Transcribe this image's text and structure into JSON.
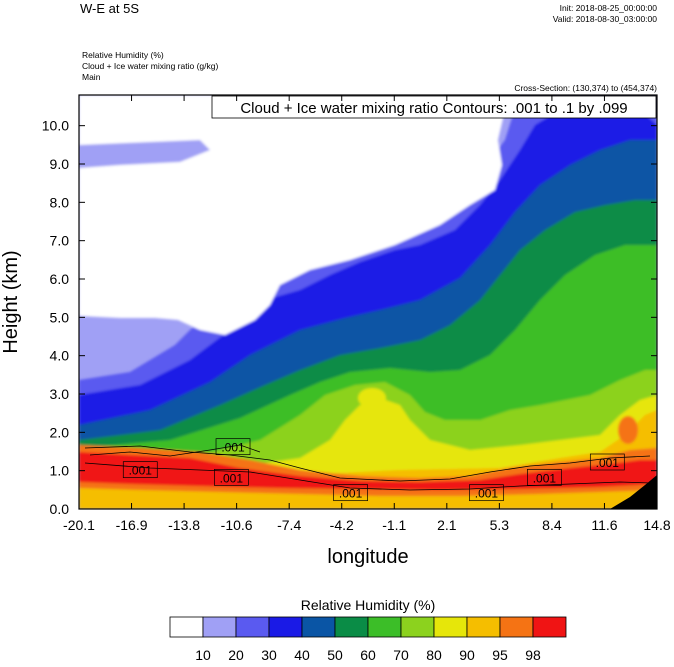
{
  "header": {
    "title": "W-E at 5S",
    "init": "Init: 2018-08-25_00:00:00",
    "valid": "Valid: 2018-08-30_03:00:00",
    "field1": "Relative Humidity   (%)",
    "field2": "Cloud + Ice water mixing ratio   (g/kg)",
    "field3": "Main",
    "cross_section": "Cross-Section: (130,374) to (454,374)"
  },
  "colors": {
    "levels": [
      "#ffffff",
      "#a0a0f5",
      "#5a5af0",
      "#1a1ae6",
      "#0a55a5",
      "#0a8c46",
      "#3cbe28",
      "#8cd21e",
      "#e6e60a",
      "#f5be00",
      "#f57314",
      "#f01414"
    ]
  },
  "chart_data": {
    "type": "heatmap",
    "title": "W-E at 5S",
    "xlabel": "longitude",
    "ylabel": "Height (km)",
    "xlim": [
      -20.1,
      14.8
    ],
    "ylim": [
      0.0,
      10.8
    ],
    "x_tick_labels": [
      "-20.1",
      "-16.9",
      "-13.8",
      "-10.6",
      "-7.4",
      "-4.2",
      "-1.1",
      "2.1",
      "5.3",
      "8.4",
      "11.6",
      "14.8"
    ],
    "y_tick_labels": [
      "0.0",
      "1.0",
      "2.0",
      "3.0",
      "4.0",
      "5.0",
      "6.0",
      "7.0",
      "8.0",
      "9.0",
      "10.0"
    ],
    "contour_title": "Cloud + Ice water mixing ratio Contours: .001 to .1 by .099",
    "contour_labels": [
      {
        "text": ".001",
        "lon": -10.8,
        "h": 1.6
      },
      {
        "text": ".001",
        "lon": -16.4,
        "h": 1.0
      },
      {
        "text": ".001",
        "lon": -10.9,
        "h": 0.8
      },
      {
        "text": ".001",
        "lon": -3.7,
        "h": 0.4
      },
      {
        "text": ".001",
        "lon": 4.5,
        "h": 0.4
      },
      {
        "text": ".001",
        "lon": 8.0,
        "h": 0.8
      },
      {
        "text": ".001",
        "lon": 11.8,
        "h": 1.2
      }
    ],
    "colorbar_title": "Relative Humidity  (%)",
    "colorbar_labels": [
      "10",
      "20",
      "30",
      "40",
      "50",
      "60",
      "70",
      "80",
      "90",
      "95",
      "98"
    ]
  }
}
